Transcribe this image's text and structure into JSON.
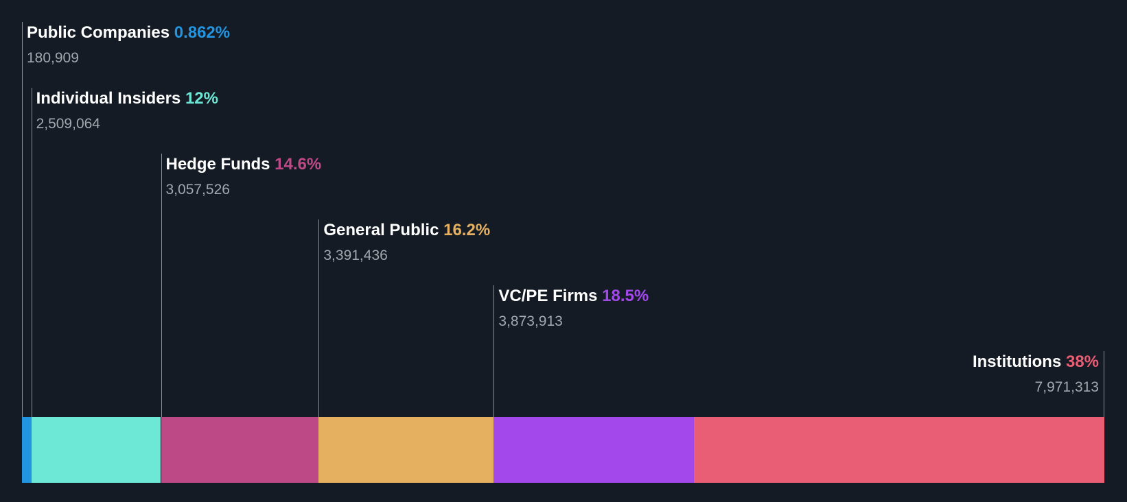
{
  "chart_data": {
    "type": "bar",
    "orientation": "horizontal-stacked",
    "categories": [
      "Public Companies",
      "Individual Insiders",
      "Hedge Funds",
      "General Public",
      "VC/PE Firms",
      "Institutions"
    ],
    "series": [
      {
        "values": [
          0.862,
          12,
          14.6,
          16.2,
          18.5,
          38
        ],
        "value_labels": [
          "0.862%",
          "12%",
          "14.6%",
          "16.2%",
          "18.5%",
          "38%"
        ],
        "counts": [
          "180,909",
          "2,509,064",
          "3,057,526",
          "3,391,436",
          "3,873,913",
          "7,971,313"
        ]
      }
    ],
    "colors": [
      "#2394df",
      "#6ee8d6",
      "#bd4a87",
      "#e6b061",
      "#a349eb",
      "#e95d75"
    ],
    "xlim": [
      0,
      100
    ],
    "grid": false,
    "legend": "none"
  }
}
